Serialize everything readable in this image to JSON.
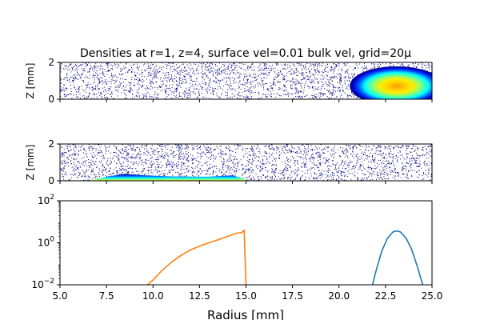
{
  "figure": {
    "title": "Densities at r=1, z=4, surface vel=0.01 bulk vel, grid=20μ"
  },
  "chart_data": [
    {
      "type": "heatmap",
      "panel": "top",
      "ylabel": "Z [mm]",
      "xlim": [
        5,
        25
      ],
      "ylim": [
        0,
        2
      ],
      "yticks": [
        "0",
        "2"
      ],
      "xtick_labels_shown": false,
      "background": "sparse scattered navy speckle over white",
      "colormap": [
        "#00007f",
        "#0050ff",
        "#00ffff",
        "#7fff7f",
        "#ffee00",
        "#ff9900"
      ],
      "blob": {
        "center_r": 23.1,
        "center_z": 0.85,
        "r_range": [
          20.2,
          25.0
        ],
        "z_range": [
          0.0,
          1.85
        ]
      }
    },
    {
      "type": "heatmap",
      "panel": "middle",
      "ylabel": "Z [mm]",
      "xlim": [
        5,
        25
      ],
      "ylim": [
        0,
        2
      ],
      "yticks": [
        "0",
        "2"
      ],
      "xtick_labels_shown": false,
      "background": "sparse scattered navy speckle over white",
      "colormap": [
        "#00007f",
        "#0050ff",
        "#00ffff",
        "#7fff7f",
        "#ffee00"
      ],
      "layer": {
        "r_range": [
          6.7,
          15.0
        ],
        "thickness_profile": [
          [
            6.7,
            0.02
          ],
          [
            7.5,
            0.22
          ],
          [
            8.5,
            0.38
          ],
          [
            9.5,
            0.3
          ],
          [
            11,
            0.24
          ],
          [
            13,
            0.22
          ],
          [
            14.3,
            0.3
          ],
          [
            15.0,
            0.05
          ]
        ]
      }
    },
    {
      "type": "line",
      "panel": "bottom",
      "xlabel": "Radius [mm]",
      "xlim": [
        5,
        25
      ],
      "ylim": [
        0.01,
        100
      ],
      "yscale": "log",
      "xticks": [
        "5.0",
        "7.5",
        "10.0",
        "12.5",
        "15.0",
        "17.5",
        "20.0",
        "22.5",
        "25.0"
      ],
      "yticks": [
        {
          "value": 0.01,
          "base": "10",
          "exp": "−2"
        },
        {
          "value": 1,
          "base": "10",
          "exp": "0"
        },
        {
          "value": 100,
          "base": "10",
          "exp": "2"
        }
      ],
      "series": [
        {
          "color": "#ff7f0e",
          "x": [
            9.7,
            10.0,
            10.5,
            11.0,
            11.5,
            12.0,
            12.5,
            13.0,
            13.5,
            14.0,
            14.5,
            14.7,
            14.8,
            14.85,
            14.9,
            14.95,
            15.0
          ],
          "y": [
            0.01,
            0.017,
            0.05,
            0.12,
            0.25,
            0.45,
            0.7,
            1.0,
            1.4,
            2.0,
            2.9,
            3.0,
            3.2,
            3.6,
            4.0,
            0.2,
            0.01
          ]
        },
        {
          "color": "#1f77b4",
          "x": [
            21.8,
            22.0,
            22.3,
            22.6,
            22.9,
            23.1,
            23.3,
            23.6,
            23.9,
            24.2,
            24.5
          ],
          "y": [
            0.01,
            0.05,
            0.4,
            1.6,
            3.3,
            3.7,
            3.3,
            1.7,
            0.5,
            0.08,
            0.01
          ]
        }
      ]
    }
  ]
}
